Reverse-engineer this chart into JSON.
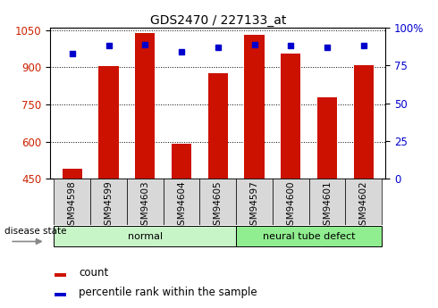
{
  "title": "GDS2470 / 227133_at",
  "categories": [
    "GSM94598",
    "GSM94599",
    "GSM94603",
    "GSM94604",
    "GSM94605",
    "GSM94597",
    "GSM94600",
    "GSM94601",
    "GSM94602"
  ],
  "counts": [
    490,
    905,
    1040,
    590,
    875,
    1030,
    955,
    780,
    910
  ],
  "percentiles": [
    83,
    88,
    89,
    84,
    87,
    89,
    88,
    87,
    88
  ],
  "groups": [
    {
      "label": "normal",
      "start": 0,
      "end": 5,
      "color": "#c8f5c8"
    },
    {
      "label": "neural tube defect",
      "start": 5,
      "end": 9,
      "color": "#90ee90"
    }
  ],
  "bar_color": "#cc1100",
  "marker_color": "#0000cc",
  "left_axis_color": "#cc2200",
  "right_axis_color": "#0000cc",
  "ylim_left": [
    450,
    1060
  ],
  "yticks_left": [
    450,
    600,
    750,
    900,
    1050
  ],
  "ylim_right": [
    0,
    100
  ],
  "yticks_right": [
    0,
    25,
    50,
    75,
    100
  ],
  "background_color": "#ffffff",
  "grid_color": "#000000",
  "legend_items": [
    "count",
    "percentile rank within the sample"
  ],
  "disease_state_label": "disease state"
}
